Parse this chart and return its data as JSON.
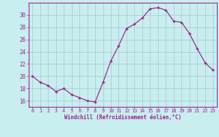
{
  "x": [
    0,
    1,
    2,
    3,
    4,
    5,
    6,
    7,
    8,
    9,
    10,
    11,
    12,
    13,
    14,
    15,
    16,
    17,
    18,
    19,
    20,
    21,
    22,
    23
  ],
  "y": [
    20.0,
    19.0,
    18.5,
    17.5,
    18.0,
    17.0,
    16.5,
    16.0,
    15.8,
    19.0,
    22.5,
    25.0,
    27.8,
    28.5,
    29.5,
    31.0,
    31.2,
    30.8,
    29.0,
    28.8,
    27.0,
    24.5,
    22.2,
    21.0
  ],
  "line_color": "#992288",
  "marker": "+",
  "bg_color": "#c8eef0",
  "grid_color": "#aacccc",
  "xlabel": "Windchill (Refroidissement éolien,°C)",
  "xlabel_color": "#992288",
  "tick_color": "#992288",
  "spine_color": "#992288",
  "ylim": [
    15,
    32
  ],
  "yticks": [
    16,
    18,
    20,
    22,
    24,
    26,
    28,
    30
  ],
  "xlim": [
    -0.5,
    23.5
  ],
  "xticks": [
    0,
    1,
    2,
    3,
    4,
    5,
    6,
    7,
    8,
    9,
    10,
    11,
    12,
    13,
    14,
    15,
    16,
    17,
    18,
    19,
    20,
    21,
    22,
    23
  ]
}
